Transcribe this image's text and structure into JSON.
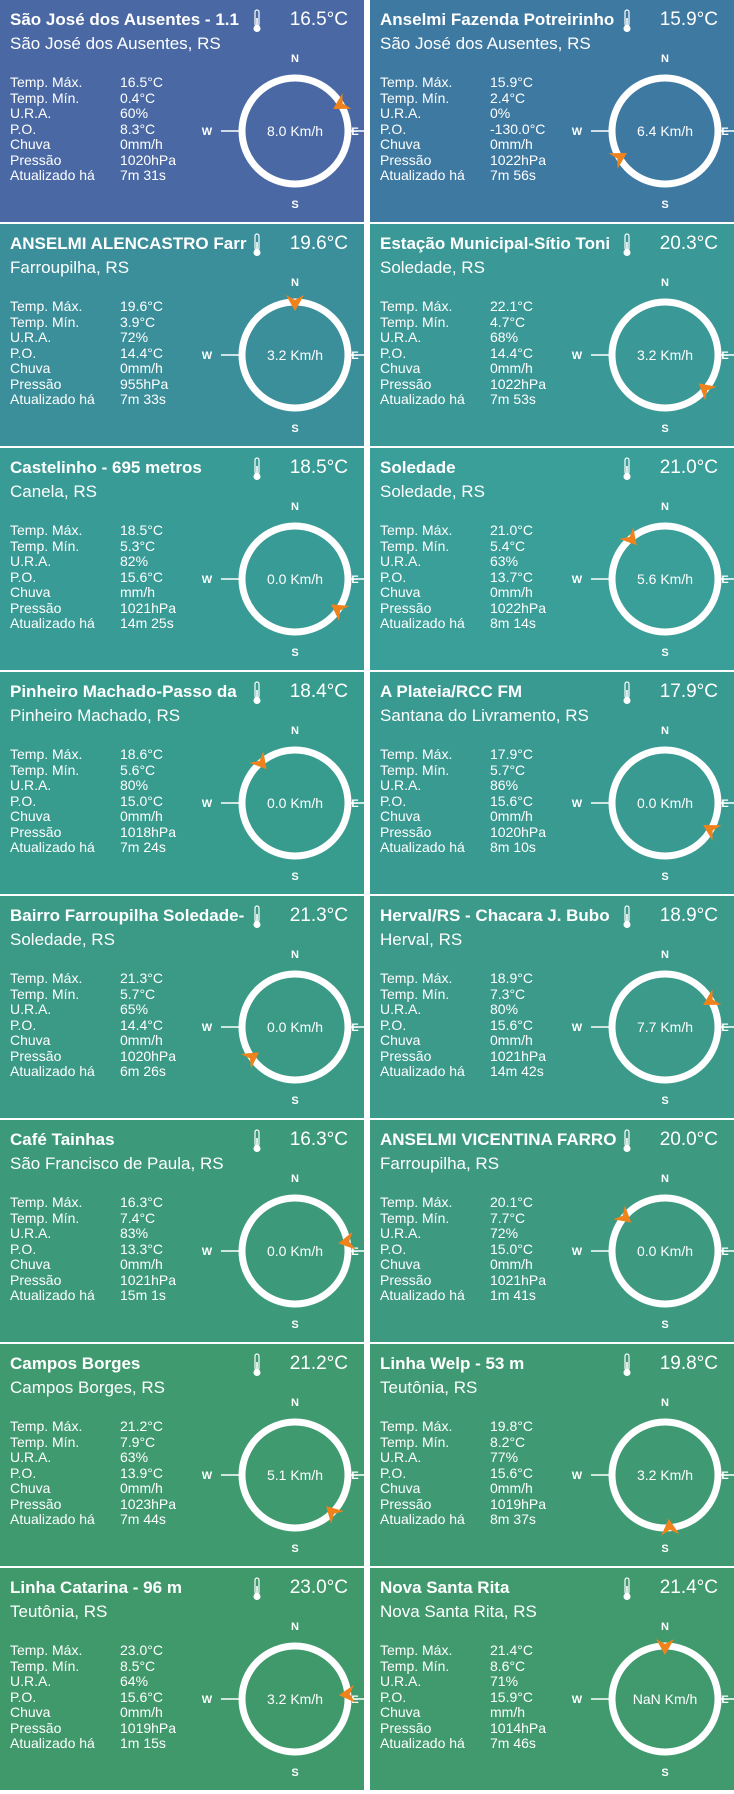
{
  "labels": {
    "temp_max": "Temp. Máx.",
    "temp_min": "Temp. Mín.",
    "ura": "U.R.A.",
    "po": "P.O.",
    "chuva": "Chuva",
    "pressao": "Pressão",
    "atualizado": "Atualizado há",
    "north": "N",
    "south": "S",
    "east": "E",
    "west": "W"
  },
  "colors": {
    "accent_arrow": "#f0821c",
    "thermometer": "#ffffff"
  },
  "stations": [
    {
      "name": "São José dos Ausentes - 1.1",
      "temp": "16.5°C",
      "location": "São José dos Ausentes, RS",
      "temp_max": "16.5°C",
      "temp_min": "0.4°C",
      "ura": "60%",
      "po": "8.3°C",
      "chuva": "0mm/h",
      "pressao": "1020hPa",
      "atualizado": "7m 31s",
      "wind": "8.0 Km/h",
      "wind_dir_deg": 60,
      "bg": "#4a69a4"
    },
    {
      "name": "Anselmi Fazenda Potreirinho",
      "temp": "15.9°C",
      "location": "São José dos Ausentes, RS",
      "temp_max": "15.9°C",
      "temp_min": "2.4°C",
      "ura": "0%",
      "po": "-130.0°C",
      "chuva": "0mm/h",
      "pressao": "1022hPa",
      "atualizado": "7m 56s",
      "wind": "6.4 Km/h",
      "wind_dir_deg": 240,
      "bg": "#3e79a2"
    },
    {
      "name": "ANSELMI ALENCASTRO Farr",
      "temp": "19.6°C",
      "location": "Farroupilha, RS",
      "temp_max": "19.6°C",
      "temp_min": "3.9°C",
      "ura": "72%",
      "po": "14.4°C",
      "chuva": "0mm/h",
      "pressao": "955hPa",
      "atualizado": "7m 33s",
      "wind": "3.2 Km/h",
      "wind_dir_deg": 0,
      "bg": "#3a8f9a"
    },
    {
      "name": "Estação Municipal-Sítio Toni",
      "temp": "20.3°C",
      "location": "Soledade, RS",
      "temp_max": "22.1°C",
      "temp_min": "4.7°C",
      "ura": "68%",
      "po": "14.4°C",
      "chuva": "0mm/h",
      "pressao": "1022hPa",
      "atualizado": "7m 53s",
      "wind": "3.2 Km/h",
      "wind_dir_deg": 130,
      "bg": "#3a9896"
    },
    {
      "name": "Castelinho - 695 metros",
      "temp": "18.5°C",
      "location": "Canela, RS",
      "temp_max": "18.5°C",
      "temp_min": "5.3°C",
      "ura": "82%",
      "po": "15.6°C",
      "chuva": "mm/h",
      "pressao": "1021hPa",
      "atualizado": "14m 25s",
      "wind": "0.0 Km/h",
      "wind_dir_deg": 125,
      "bg": "#389b95"
    },
    {
      "name": "Soledade",
      "temp": "21.0°C",
      "location": "Soledade, RS",
      "temp_max": "21.0°C",
      "temp_min": "5.4°C",
      "ura": "63%",
      "po": "13.7°C",
      "chuva": "0mm/h",
      "pressao": "1022hPa",
      "atualizado": "8m 14s",
      "wind": "5.6 Km/h",
      "wind_dir_deg": 320,
      "bg": "#399f98"
    },
    {
      "name": "Pinheiro Machado-Passo da",
      "temp": "18.4°C",
      "location": "Pinheiro Machado, RS",
      "temp_max": "18.6°C",
      "temp_min": "5.6°C",
      "ura": "80%",
      "po": "15.0°C",
      "chuva": "0mm/h",
      "pressao": "1018hPa",
      "atualizado": "7m 24s",
      "wind": "0.0 Km/h",
      "wind_dir_deg": 320,
      "bg": "#379c8e"
    },
    {
      "name": "A Plateia/RCC FM",
      "temp": "17.9°C",
      "location": "Santana do Livramento, RS",
      "temp_max": "17.9°C",
      "temp_min": "5.7°C",
      "ura": "86%",
      "po": "15.6°C",
      "chuva": "0mm/h",
      "pressao": "1020hPa",
      "atualizado": "8m 10s",
      "wind": "0.0 Km/h",
      "wind_dir_deg": 120,
      "bg": "#399a92"
    },
    {
      "name": "Bairro Farroupilha Soledade-",
      "temp": "21.3°C",
      "location": "Soledade, RS",
      "temp_max": "21.3°C",
      "temp_min": "5.7°C",
      "ura": "65%",
      "po": "14.4°C",
      "chuva": "0mm/h",
      "pressao": "1020hPa",
      "atualizado": "6m 26s",
      "wind": "0.0 Km/h",
      "wind_dir_deg": 235,
      "bg": "#3a9a86"
    },
    {
      "name": "Herval/RS - Chacara J. Bubo",
      "temp": "18.9°C",
      "location": "Herval, RS",
      "temp_max": "18.9°C",
      "temp_min": "7.3°C",
      "ura": "80%",
      "po": "15.6°C",
      "chuva": "0mm/h",
      "pressao": "1021hPa",
      "atualizado": "14m 42s",
      "wind": "7.7 Km/h",
      "wind_dir_deg": 60,
      "bg": "#3b9a8a"
    },
    {
      "name": "Café Tainhas",
      "temp": "16.3°C",
      "location": "São Francisco de Paula, RS",
      "temp_max": "16.3°C",
      "temp_min": "7.4°C",
      "ura": "83%",
      "po": "13.3°C",
      "chuva": "0mm/h",
      "pressao": "1021hPa",
      "atualizado": "15m 1s",
      "wind": "0.0 Km/h",
      "wind_dir_deg": 80,
      "bg": "#3c9a7a"
    },
    {
      "name": "ANSELMI VICENTINA FARRO",
      "temp": "20.0°C",
      "location": "Farroupilha, RS",
      "temp_max": "20.1°C",
      "temp_min": "7.7°C",
      "ura": "72%",
      "po": "15.0°C",
      "chuva": "0mm/h",
      "pressao": "1021hPa",
      "atualizado": "1m 41s",
      "wind": "0.0 Km/h",
      "wind_dir_deg": 310,
      "bg": "#3d9a80"
    },
    {
      "name": "Campos Borges",
      "temp": "21.2°C",
      "location": "Campos Borges, RS",
      "temp_max": "21.2°C",
      "temp_min": "7.9°C",
      "ura": "63%",
      "po": "13.9°C",
      "chuva": "0mm/h",
      "pressao": "1023hPa",
      "atualizado": "7m 44s",
      "wind": "5.1 Km/h",
      "wind_dir_deg": 135,
      "bg": "#3f9a6f"
    },
    {
      "name": "Linha Welp - 53 m",
      "temp": "19.8°C",
      "location": "Teutônia, RS",
      "temp_max": "19.8°C",
      "temp_min": "8.2°C",
      "ura": "77%",
      "po": "15.6°C",
      "chuva": "0mm/h",
      "pressao": "1019hPa",
      "atualizado": "8m 37s",
      "wind": "3.2 Km/h",
      "wind_dir_deg": 175,
      "bg": "#3f9a74"
    },
    {
      "name": "Linha Catarina - 96 m",
      "temp": "23.0°C",
      "location": "Teutônia, RS",
      "temp_max": "23.0°C",
      "temp_min": "8.5°C",
      "ura": "64%",
      "po": "15.6°C",
      "chuva": "0mm/h",
      "pressao": "1019hPa",
      "atualizado": "1m 15s",
      "wind": "3.2 Km/h",
      "wind_dir_deg": 85,
      "bg": "#40996b"
    },
    {
      "name": "Nova Santa Rita",
      "temp": "21.4°C",
      "location": "Nova Santa Rita, RS",
      "temp_max": "21.4°C",
      "temp_min": "8.6°C",
      "ura": "71%",
      "po": "15.9°C",
      "chuva": "mm/h",
      "pressao": "1014hPa",
      "atualizado": "7m 46s",
      "wind": "NaN Km/h",
      "wind_dir_deg": 0,
      "bg": "#409a6e"
    }
  ]
}
